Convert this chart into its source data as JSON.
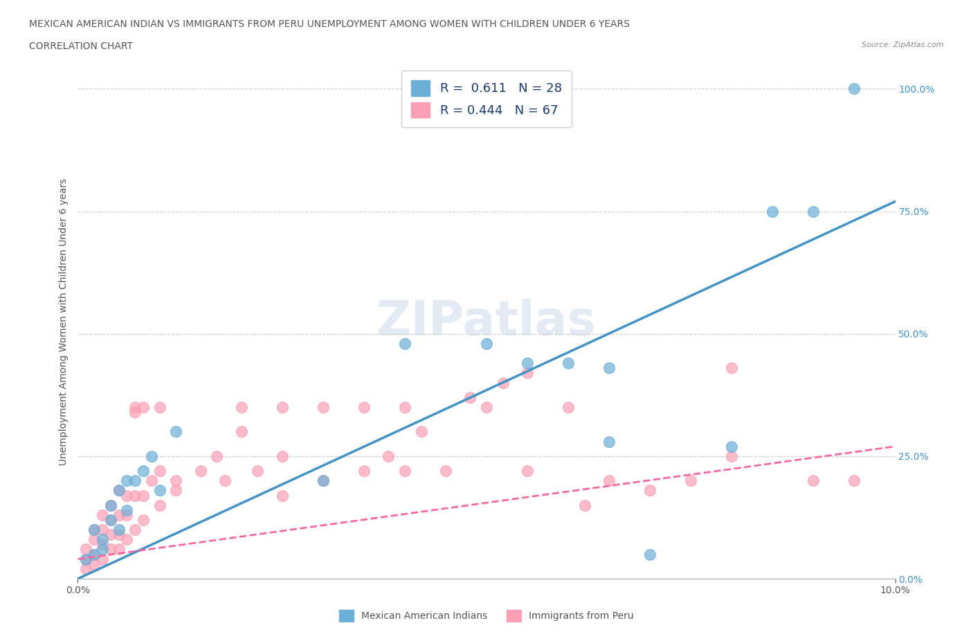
{
  "title_line1": "MEXICAN AMERICAN INDIAN VS IMMIGRANTS FROM PERU UNEMPLOYMENT AMONG WOMEN WITH CHILDREN UNDER 6 YEARS",
  "title_line2": "CORRELATION CHART",
  "source": "Source: ZipAtlas.com",
  "ylabel": "Unemployment Among Women with Children Under 6 years",
  "xlim": [
    0.0,
    0.1
  ],
  "ylim": [
    0.0,
    1.05
  ],
  "ytick_labels": [
    "0.0%",
    "25.0%",
    "50.0%",
    "75.0%",
    "100.0%"
  ],
  "ytick_values": [
    0.0,
    0.25,
    0.5,
    0.75,
    1.0
  ],
  "watermark": "ZIPatlas",
  "blue_color": "#6baed6",
  "pink_color": "#fa9fb5",
  "blue_line_color": "#4292c6",
  "pink_line_color": "#f768a1",
  "blue_scatter": [
    [
      0.001,
      0.04
    ],
    [
      0.002,
      0.05
    ],
    [
      0.002,
      0.1
    ],
    [
      0.003,
      0.06
    ],
    [
      0.003,
      0.08
    ],
    [
      0.004,
      0.12
    ],
    [
      0.004,
      0.15
    ],
    [
      0.005,
      0.1
    ],
    [
      0.005,
      0.18
    ],
    [
      0.006,
      0.14
    ],
    [
      0.006,
      0.2
    ],
    [
      0.007,
      0.2
    ],
    [
      0.008,
      0.22
    ],
    [
      0.009,
      0.25
    ],
    [
      0.01,
      0.18
    ],
    [
      0.012,
      0.3
    ],
    [
      0.03,
      0.2
    ],
    [
      0.04,
      0.48
    ],
    [
      0.05,
      0.48
    ],
    [
      0.055,
      0.44
    ],
    [
      0.06,
      0.44
    ],
    [
      0.065,
      0.28
    ],
    [
      0.065,
      0.43
    ],
    [
      0.07,
      0.05
    ],
    [
      0.08,
      0.27
    ],
    [
      0.085,
      0.75
    ],
    [
      0.09,
      0.75
    ],
    [
      0.095,
      1.0
    ]
  ],
  "pink_scatter": [
    [
      0.001,
      0.02
    ],
    [
      0.001,
      0.04
    ],
    [
      0.001,
      0.06
    ],
    [
      0.002,
      0.03
    ],
    [
      0.002,
      0.05
    ],
    [
      0.002,
      0.08
    ],
    [
      0.002,
      0.1
    ],
    [
      0.003,
      0.04
    ],
    [
      0.003,
      0.07
    ],
    [
      0.003,
      0.1
    ],
    [
      0.003,
      0.13
    ],
    [
      0.004,
      0.06
    ],
    [
      0.004,
      0.09
    ],
    [
      0.004,
      0.12
    ],
    [
      0.004,
      0.15
    ],
    [
      0.005,
      0.06
    ],
    [
      0.005,
      0.09
    ],
    [
      0.005,
      0.13
    ],
    [
      0.005,
      0.18
    ],
    [
      0.006,
      0.08
    ],
    [
      0.006,
      0.13
    ],
    [
      0.006,
      0.17
    ],
    [
      0.007,
      0.1
    ],
    [
      0.007,
      0.17
    ],
    [
      0.007,
      0.34
    ],
    [
      0.007,
      0.35
    ],
    [
      0.008,
      0.12
    ],
    [
      0.008,
      0.17
    ],
    [
      0.008,
      0.35
    ],
    [
      0.009,
      0.2
    ],
    [
      0.01,
      0.15
    ],
    [
      0.01,
      0.22
    ],
    [
      0.01,
      0.35
    ],
    [
      0.012,
      0.18
    ],
    [
      0.012,
      0.2
    ],
    [
      0.015,
      0.22
    ],
    [
      0.017,
      0.25
    ],
    [
      0.018,
      0.2
    ],
    [
      0.02,
      0.3
    ],
    [
      0.02,
      0.35
    ],
    [
      0.022,
      0.22
    ],
    [
      0.025,
      0.17
    ],
    [
      0.025,
      0.25
    ],
    [
      0.025,
      0.35
    ],
    [
      0.03,
      0.2
    ],
    [
      0.03,
      0.35
    ],
    [
      0.035,
      0.22
    ],
    [
      0.035,
      0.35
    ],
    [
      0.038,
      0.25
    ],
    [
      0.04,
      0.22
    ],
    [
      0.04,
      0.35
    ],
    [
      0.042,
      0.3
    ],
    [
      0.045,
      0.22
    ],
    [
      0.048,
      0.37
    ],
    [
      0.05,
      0.35
    ],
    [
      0.052,
      0.4
    ],
    [
      0.055,
      0.22
    ],
    [
      0.055,
      0.42
    ],
    [
      0.06,
      0.35
    ],
    [
      0.062,
      0.15
    ],
    [
      0.065,
      0.2
    ],
    [
      0.07,
      0.18
    ],
    [
      0.075,
      0.2
    ],
    [
      0.08,
      0.43
    ],
    [
      0.08,
      0.25
    ],
    [
      0.09,
      0.2
    ],
    [
      0.095,
      0.2
    ]
  ],
  "blue_line_x": [
    0.0,
    0.1
  ],
  "blue_line_y": [
    0.0,
    0.77
  ],
  "pink_line_x": [
    0.0,
    0.1
  ],
  "pink_line_y": [
    0.04,
    0.27
  ]
}
